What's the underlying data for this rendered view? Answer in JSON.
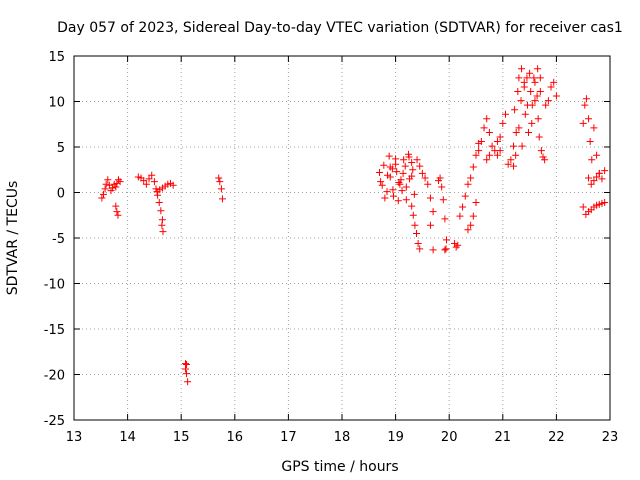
{
  "chart_data": {
    "type": "scatter",
    "title": "Day 057 of 2023, Sidereal Day-to-day VTEC variation (SDTVAR) for receiver cas1",
    "xlabel": "GPS time / hours",
    "ylabel": "SDTVAR / TECUs",
    "xlim": [
      13,
      23
    ],
    "ylim": [
      -25,
      15
    ],
    "xticks": [
      "13",
      "14",
      "15",
      "16",
      "17",
      "18",
      "19",
      "20",
      "21",
      "22",
      "23"
    ],
    "yticks": [
      "15",
      "10",
      "5",
      "0",
      "-5",
      "-10",
      "-15",
      "-20",
      "-25"
    ],
    "grid": true,
    "marker": "+",
    "color": "#ff0000",
    "series": [
      {
        "name": "cas1",
        "segments": [
          {
            "x": [
              13.52,
              13.55,
              13.58,
              13.6,
              13.63,
              13.66,
              13.69,
              13.72,
              13.75,
              13.78,
              13.8,
              13.83,
              13.86
            ],
            "y": [
              -0.6,
              -0.2,
              0.4,
              0.9,
              1.4,
              0.8,
              0.2,
              0.5,
              0.9,
              0.6,
              1.0,
              1.4,
              1.2
            ]
          },
          {
            "x": [
              13.78,
              13.8,
              13.82
            ],
            "y": [
              -1.5,
              -2.1,
              -2.5
            ]
          },
          {
            "x": [
              14.2,
              14.25,
              14.3,
              14.35,
              14.4,
              14.45,
              14.5,
              14.53,
              14.56,
              14.59,
              14.62,
              14.65
            ],
            "y": [
              1.7,
              1.6,
              1.3,
              0.9,
              1.5,
              1.9,
              1.2,
              0.4,
              -0.3,
              -1.1,
              -2.0,
              -3.0
            ]
          },
          {
            "x": [
              14.64,
              14.66
            ],
            "y": [
              -3.6,
              -4.3
            ]
          },
          {
            "x": [
              14.55,
              14.6,
              14.65,
              14.7,
              14.75,
              14.8,
              14.85
            ],
            "y": [
              0.1,
              0.3,
              0.5,
              0.7,
              0.9,
              1.0,
              0.8
            ]
          },
          {
            "x": [
              15.08,
              15.1,
              15.12
            ],
            "y": [
              -18.8,
              -19.9,
              -20.8
            ]
          },
          {
            "x": [
              15.08,
              15.1
            ],
            "y": [
              -19.4,
              -18.9
            ]
          },
          {
            "x": [
              15.7,
              15.72,
              15.75,
              15.77
            ],
            "y": [
              1.6,
              1.2,
              0.4,
              -0.7
            ]
          },
          {
            "x": [
              18.7,
              18.75,
              18.8,
              18.85,
              18.9,
              18.95,
              19.0,
              19.05,
              19.1,
              19.15,
              19.2,
              19.25,
              19.3,
              19.35
            ],
            "y": [
              2.2,
              0.8,
              -0.6,
              1.9,
              2.8,
              0.3,
              3.1,
              -0.9,
              1.4,
              3.6,
              0.6,
              3.9,
              1.8,
              -0.2
            ]
          },
          {
            "x": [
              18.72,
              18.78,
              18.84,
              18.9,
              18.96,
              19.02,
              19.08,
              19.14,
              19.2,
              19.26,
              19.32
            ],
            "y": [
              1.2,
              3.0,
              0.1,
              1.7,
              -0.4,
              2.3,
              0.9,
              2.1,
              -0.8,
              1.5,
              2.5
            ]
          },
          {
            "x": [
              18.88,
              18.94,
              19.0,
              19.06,
              19.12,
              19.18,
              19.24,
              19.3
            ],
            "y": [
              4.0,
              2.6,
              3.7,
              1.1,
              0.2,
              2.9,
              4.2,
              3.3
            ]
          },
          {
            "x": [
              19.3,
              19.33,
              19.36,
              19.39,
              19.42,
              19.45
            ],
            "y": [
              -1.5,
              -2.5,
              -3.6,
              -4.5,
              -5.6,
              -6.2
            ]
          },
          {
            "x": [
              19.4,
              19.45,
              19.5,
              19.55,
              19.6,
              19.65,
              19.7
            ],
            "y": [
              3.6,
              2.9,
              2.1,
              1.6,
              0.9,
              -0.6,
              -2.1
            ]
          },
          {
            "x": [
              19.65,
              19.7
            ],
            "y": [
              -3.6,
              -6.3
            ]
          },
          {
            "x": [
              19.8,
              19.83,
              19.86,
              19.89,
              19.92,
              19.95
            ],
            "y": [
              1.3,
              1.6,
              0.6,
              -0.8,
              -2.9,
              -5.2
            ]
          },
          {
            "x": [
              19.92,
              19.94
            ],
            "y": [
              -6.3,
              -6.2
            ]
          },
          {
            "x": [
              20.1,
              20.13,
              20.16
            ],
            "y": [
              -5.6,
              -6.0,
              -5.8
            ]
          },
          {
            "x": [
              20.2,
              20.25,
              20.3,
              20.35,
              20.4,
              20.45,
              20.5,
              20.55
            ],
            "y": [
              -2.6,
              -1.6,
              -0.4,
              0.9,
              1.6,
              2.8,
              4.1,
              5.4
            ]
          },
          {
            "x": [
              20.35,
              20.4,
              20.45,
              20.5
            ],
            "y": [
              -4.1,
              -3.6,
              -2.6,
              -1.1
            ]
          },
          {
            "x": [
              20.55,
              20.6,
              20.65,
              20.7,
              20.75
            ],
            "y": [
              4.6,
              5.6,
              7.1,
              8.1,
              6.6
            ]
          },
          {
            "x": [
              20.7,
              20.75,
              20.8,
              20.85,
              20.9,
              20.95
            ],
            "y": [
              3.6,
              4.1,
              5.1,
              4.6,
              5.6,
              6.1
            ]
          },
          {
            "x": [
              20.9,
              20.95,
              21.0,
              21.05,
              21.1,
              21.15,
              21.2
            ],
            "y": [
              4.1,
              4.6,
              7.6,
              8.6,
              3.1,
              3.6,
              2.9
            ]
          },
          {
            "x": [
              21.2,
              21.25,
              21.3,
              21.35,
              21.4,
              21.45,
              21.5,
              21.55,
              21.6,
              21.65,
              21.7
            ],
            "y": [
              5.1,
              6.6,
              12.6,
              13.6,
              11.6,
              12.6,
              13.1,
              9.6,
              12.1,
              13.6,
              11.1
            ]
          },
          {
            "x": [
              21.22,
              21.28,
              21.34,
              21.4,
              21.46,
              21.52,
              21.58,
              21.64,
              21.7
            ],
            "y": [
              9.1,
              11.1,
              10.1,
              12.1,
              9.6,
              11.1,
              12.6,
              10.6,
              12.6
            ]
          },
          {
            "x": [
              21.24,
              21.3,
              21.36,
              21.42,
              21.48,
              21.54,
              21.6,
              21.66
            ],
            "y": [
              4.1,
              7.1,
              5.1,
              8.6,
              6.6,
              7.6,
              10.1,
              8.1
            ]
          },
          {
            "x": [
              21.68,
              21.72,
              21.75,
              21.78
            ],
            "y": [
              6.1,
              4.6,
              3.9,
              3.6
            ]
          },
          {
            "x": [
              21.8,
              21.85,
              21.9,
              21.95,
              22.0
            ],
            "y": [
              9.6,
              10.1,
              11.6,
              12.1,
              10.6
            ]
          },
          {
            "x": [
              22.5,
              22.53,
              22.56,
              22.6,
              22.63,
              22.66,
              22.7,
              22.75,
              22.8
            ],
            "y": [
              7.6,
              9.6,
              10.3,
              8.1,
              5.6,
              3.6,
              7.1,
              4.1,
              2.1
            ]
          },
          {
            "x": [
              22.6,
              22.65,
              22.7,
              22.75,
              22.8,
              22.85,
              22.9
            ],
            "y": [
              1.6,
              0.9,
              1.3,
              1.7,
              2.1,
              1.5,
              2.4
            ]
          },
          {
            "x": [
              22.5,
              22.55,
              22.6,
              22.65,
              22.7,
              22.75,
              22.8,
              22.85,
              22.9
            ],
            "y": [
              -1.6,
              -2.4,
              -2.1,
              -1.9,
              -1.6,
              -1.4,
              -1.3,
              -1.2,
              -1.1
            ]
          }
        ]
      }
    ]
  }
}
